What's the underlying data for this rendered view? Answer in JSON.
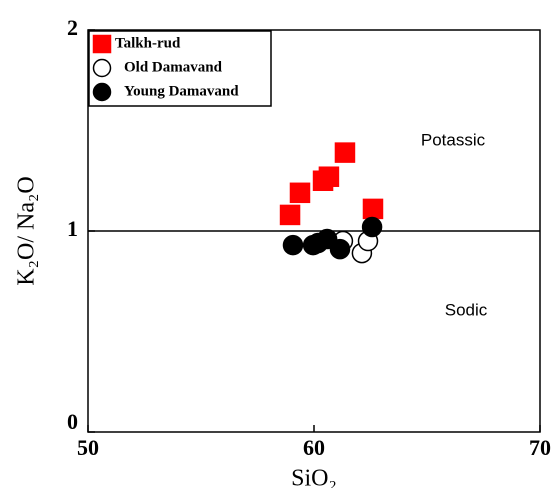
{
  "chart_data": {
    "type": "scatter",
    "x_label": "SiO₂",
    "y_label": "K₂O/ Na₂O",
    "xlim": [
      50,
      70
    ],
    "xticks": [
      50,
      60,
      70
    ],
    "ylim": [
      0,
      2
    ],
    "yticks": [
      0,
      1,
      2
    ],
    "reference_line": 1,
    "annotations": [
      "Potassic",
      "Sodic"
    ],
    "legend": "upper left",
    "series": [
      {
        "name": "Talkh-rud",
        "marker": "square",
        "color": "#ff0000",
        "edgecolor": "#ff0000",
        "x": [
          58.94,
          59.38,
          60.4,
          60.66,
          61.37,
          62.61
        ],
        "values": [
          1.08,
          1.19,
          1.25,
          1.27,
          1.39,
          1.11
        ]
      },
      {
        "name": "Old Damavand",
        "marker": "circle",
        "color": "#ffffff",
        "edgecolor": "#000000",
        "x": [
          61.28,
          62.12,
          62.39
        ],
        "values": [
          0.95,
          0.89,
          0.95
        ]
      },
      {
        "name": "Young Damavand",
        "marker": "circle",
        "color": "#000000",
        "edgecolor": "#000000",
        "x": [
          59.07,
          59.96,
          60.18,
          60.58,
          61.15,
          62.57
        ],
        "values": [
          0.93,
          0.93,
          0.94,
          0.96,
          0.91,
          1.02
        ]
      }
    ]
  }
}
